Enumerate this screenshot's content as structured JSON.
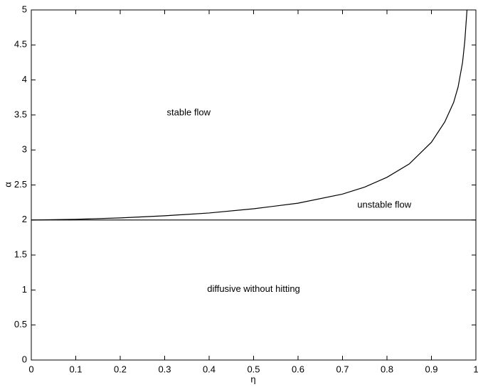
{
  "chart_data": {
    "type": "line",
    "xlabel": "η",
    "ylabel": "α",
    "xlim": [
      0,
      1
    ],
    "ylim": [
      0,
      5
    ],
    "xticks": [
      0,
      0.1,
      0.2,
      0.3,
      0.4,
      0.5,
      0.6,
      0.7,
      0.8,
      0.9,
      1
    ],
    "yticks": [
      0,
      0.5,
      1,
      1.5,
      2,
      2.5,
      3,
      3.5,
      4,
      4.5,
      5
    ],
    "grid": false,
    "series": [
      {
        "color": "#000000",
        "x": [
          0,
          0.1,
          0.2,
          0.3,
          0.4,
          0.5,
          0.6,
          0.7,
          0.75,
          0.8,
          0.85,
          0.9,
          0.93,
          0.95,
          0.96,
          0.97,
          0.975,
          0.98
        ],
        "values": [
          2,
          2.01,
          2.03,
          2.06,
          2.1,
          2.16,
          2.24,
          2.37,
          2.47,
          2.61,
          2.8,
          3.11,
          3.4,
          3.68,
          3.9,
          4.25,
          4.55,
          5
        ]
      },
      {
        "color": "#000000",
        "x": [
          0,
          1
        ],
        "values": [
          2,
          2
        ]
      }
    ],
    "annotations": [
      {
        "text": "stable flow",
        "x": 0.354,
        "y": 3.53
      },
      {
        "text": "unstable flow",
        "x": 0.794,
        "y": 2.21
      },
      {
        "text": "diffusive without hitting",
        "x": 0.5,
        "y": 1.01
      }
    ]
  }
}
